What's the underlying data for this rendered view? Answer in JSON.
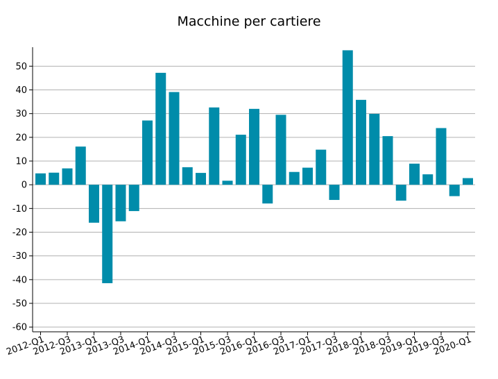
{
  "chart_data": {
    "type": "bar",
    "title": "Macchine per cartiere",
    "xlabel": "",
    "ylabel": "",
    "ylim": [
      -62,
      58
    ],
    "yticks": [
      -60,
      -50,
      -40,
      -30,
      -20,
      -10,
      0,
      10,
      20,
      30,
      40,
      50
    ],
    "grid": "horizontal",
    "bar_color": "#008CAA",
    "x_tick_labels": [
      "2012-Q1",
      "2012-Q3",
      "2013-Q1",
      "2013-Q3",
      "2014-Q1",
      "2014-Q3",
      "2015-Q1",
      "2015-Q3",
      "2016-Q1",
      "2016-Q3",
      "2017-Q1",
      "2017-Q3",
      "2018-Q1",
      "2018-Q3",
      "2019-Q1",
      "2019-Q3",
      "2020-Q1"
    ],
    "categories": [
      "2012-Q1",
      "2012-Q2",
      "2012-Q3",
      "2012-Q4",
      "2013-Q1",
      "2013-Q2",
      "2013-Q3",
      "2013-Q4",
      "2014-Q1",
      "2014-Q2",
      "2014-Q3",
      "2014-Q4",
      "2015-Q1",
      "2015-Q2",
      "2015-Q3",
      "2015-Q4",
      "2016-Q1",
      "2016-Q2",
      "2016-Q3",
      "2016-Q4",
      "2017-Q1",
      "2017-Q2",
      "2017-Q3",
      "2017-Q4",
      "2018-Q1",
      "2018-Q2",
      "2018-Q3",
      "2018-Q4",
      "2019-Q1",
      "2019-Q2",
      "2019-Q3",
      "2019-Q4",
      "2020-Q1"
    ],
    "values": [
      4.8,
      5.1,
      6.9,
      16.1,
      -16.0,
      -41.5,
      -15.4,
      -11.1,
      27.1,
      47.2,
      39.1,
      7.4,
      5.0,
      32.6,
      1.7,
      21.1,
      32.0,
      -7.9,
      29.5,
      5.4,
      7.2,
      14.8,
      -6.4,
      56.7,
      35.8,
      29.9,
      20.5,
      -6.7,
      8.9,
      4.4,
      23.9,
      -4.8,
      2.8
    ]
  }
}
